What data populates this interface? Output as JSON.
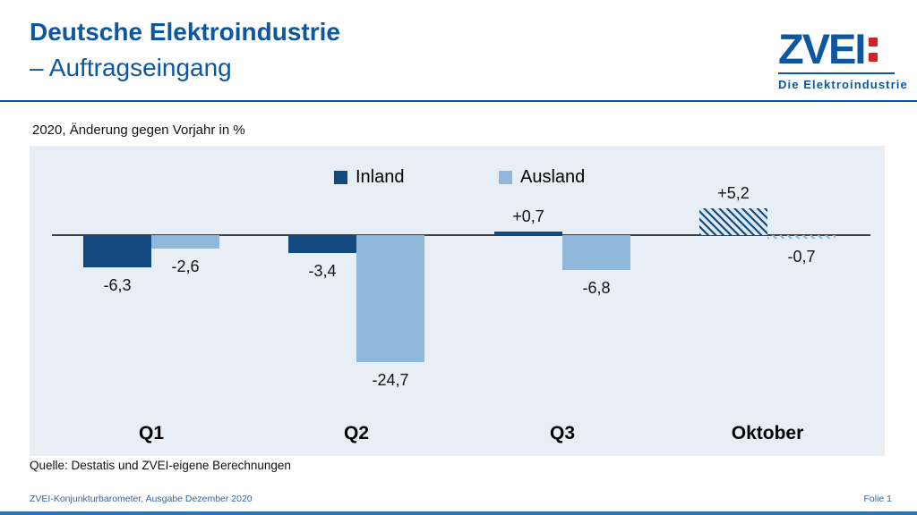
{
  "header": {
    "title_line1": "Deutsche Elektroindustrie",
    "title_line2": "– Auftragseingang",
    "logo": {
      "text": "ZVEI",
      "tagline": "Die Elektroindustrie"
    }
  },
  "subtitle": "2020, Änderung gegen Vorjahr in %",
  "chart_data": {
    "type": "bar",
    "title": "Deutsche Elektroindustrie – Auftragseingang",
    "subtitle": "2020, Änderung gegen Vorjahr in %",
    "unit": "Änderung gegen Vorjahr in %",
    "categories": [
      "Q1",
      "Q2",
      "Q3",
      "Oktober"
    ],
    "series": [
      {
        "name": "Inland",
        "color": "#124a80",
        "values": [
          -6.3,
          -3.4,
          0.7,
          5.2
        ],
        "labels": [
          "-6,3",
          "-3,4",
          "+0,7",
          "+5,2"
        ]
      },
      {
        "name": "Ausland",
        "color": "#8fb8da",
        "values": [
          -2.6,
          -24.7,
          -6.8,
          -0.7
        ],
        "labels": [
          "-2,6",
          "-24,7",
          "-6,8",
          "-0,7"
        ]
      }
    ],
    "hatched_category": "Oktober",
    "ylim": [
      -26,
      7
    ],
    "legend_position": "top",
    "grid": false
  },
  "source": "Quelle: Destatis und ZVEI-eigene Berechnungen",
  "footer": {
    "left": "ZVEI-Konjunkturbarometer, Ausgabe Dezember 2020",
    "right": "Folie 1"
  },
  "colors": {
    "brand_blue": "#0d57a0",
    "brand_red": "#d2232a",
    "inland": "#124a80",
    "ausland": "#8fb8da",
    "chart_bg": "#e7eef5",
    "axis": "#3d3d3d",
    "footer_text": "#33679e",
    "bottom_bar": "#2e75b6"
  }
}
